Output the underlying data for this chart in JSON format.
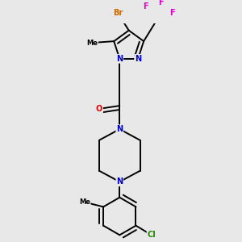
{
  "background_color": "#e8e8e8",
  "atom_colors": {
    "N": "#0000cc",
    "O": "#dd0000",
    "Br": "#cc6600",
    "F": "#dd00cc",
    "Cl": "#228800"
  },
  "bond_color": "#000000",
  "bond_width": 1.4,
  "font_size": 7
}
